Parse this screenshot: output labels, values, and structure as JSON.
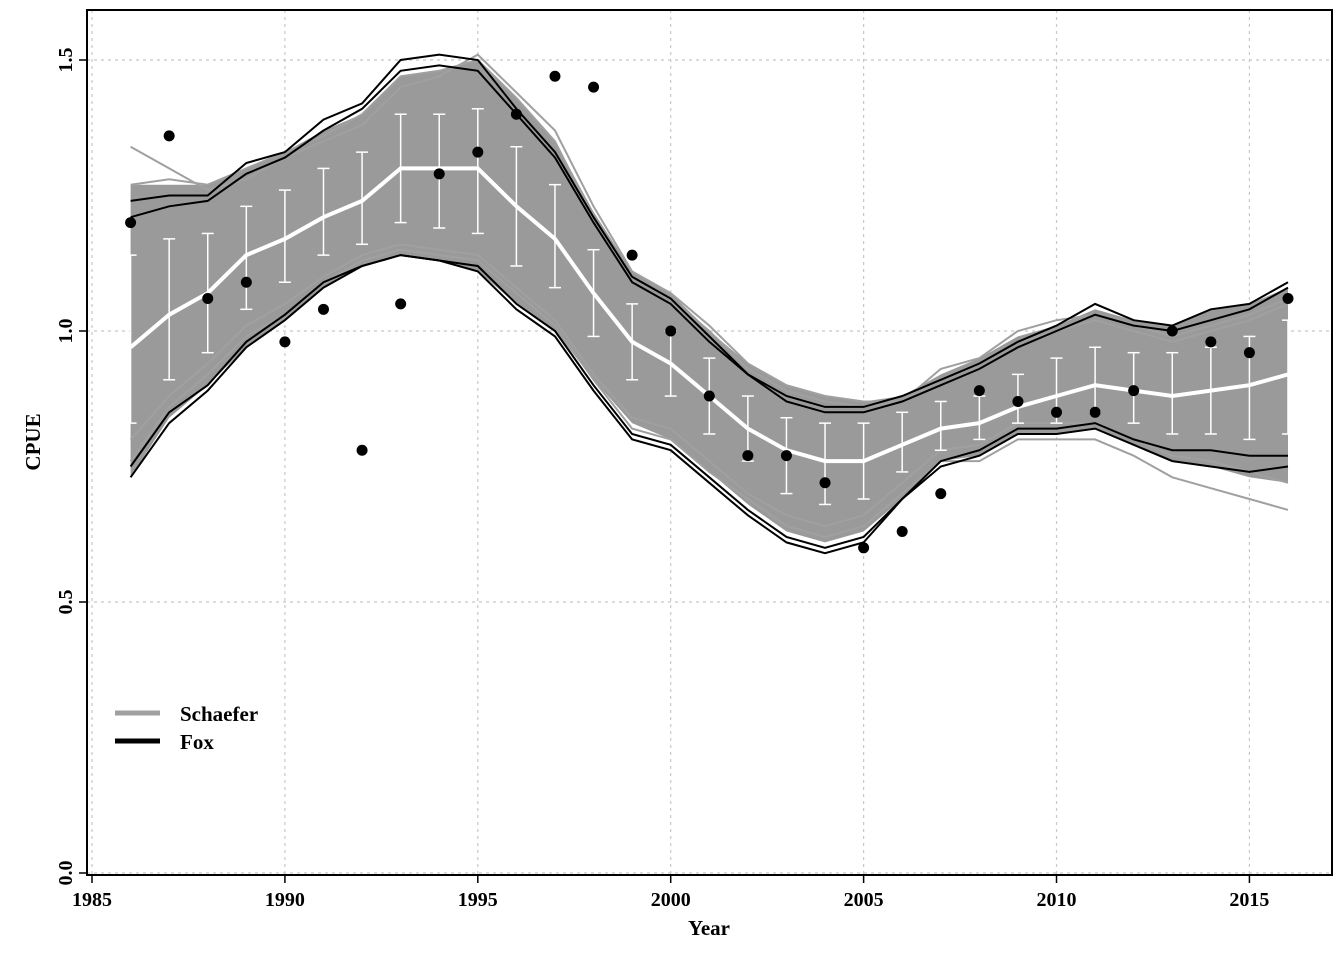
{
  "chart_data": {
    "type": "line",
    "title": "",
    "xlabel": "Year",
    "ylabel": "CPUE",
    "xlim": [
      1985,
      2017
    ],
    "ylim": [
      0,
      1.6
    ],
    "x_ticks": [
      1985,
      1990,
      1995,
      2000,
      2005,
      2010,
      2015
    ],
    "y_ticks": [
      0.0,
      0.5,
      1.0,
      1.5
    ],
    "x_tick_labels": [
      "1985",
      "1990",
      "1995",
      "2000",
      "2005",
      "2010",
      "2015"
    ],
    "y_tick_labels": [
      "0.0",
      "0.5",
      "1.0",
      "1.5"
    ],
    "grid": true,
    "legend_position": "bottom-left",
    "legend": [
      {
        "name": "Schaefer",
        "color": "#a0a0a0"
      },
      {
        "name": "Fox",
        "color": "#000000"
      }
    ],
    "years": [
      1986,
      1987,
      1988,
      1989,
      1990,
      1991,
      1992,
      1993,
      1994,
      1995,
      1996,
      1997,
      1998,
      1999,
      2000,
      2001,
      2002,
      2003,
      2004,
      2005,
      2006,
      2007,
      2008,
      2009,
      2010,
      2011,
      2012,
      2013,
      2014,
      2015,
      2016
    ],
    "median": [
      0.97,
      1.03,
      1.07,
      1.14,
      1.17,
      1.21,
      1.24,
      1.3,
      1.3,
      1.3,
      1.23,
      1.17,
      1.07,
      0.98,
      0.94,
      0.88,
      0.82,
      0.78,
      0.76,
      0.76,
      0.79,
      0.82,
      0.83,
      0.86,
      0.88,
      0.9,
      0.89,
      0.88,
      0.89,
      0.9,
      0.92
    ],
    "band_upper": [
      1.27,
      1.27,
      1.27,
      1.3,
      1.33,
      1.37,
      1.4,
      1.47,
      1.48,
      1.5,
      1.43,
      1.35,
      1.22,
      1.11,
      1.07,
      1.0,
      0.94,
      0.9,
      0.88,
      0.87,
      0.88,
      0.92,
      0.95,
      0.99,
      1.01,
      1.04,
      1.02,
      1.01,
      1.04,
      1.05,
      1.08
    ],
    "band_lower": [
      0.73,
      0.84,
      0.9,
      0.97,
      1.02,
      1.08,
      1.12,
      1.14,
      1.13,
      1.11,
      1.05,
      1.0,
      0.91,
      0.83,
      0.8,
      0.74,
      0.68,
      0.63,
      0.61,
      0.63,
      0.69,
      0.76,
      0.77,
      0.81,
      0.81,
      0.82,
      0.79,
      0.76,
      0.75,
      0.73,
      0.72
    ],
    "ci_upper": [
      1.14,
      1.17,
      1.18,
      1.23,
      1.26,
      1.3,
      1.33,
      1.4,
      1.4,
      1.41,
      1.34,
      1.27,
      1.15,
      1.05,
      1.0,
      0.95,
      0.88,
      0.84,
      0.83,
      0.83,
      0.85,
      0.87,
      0.88,
      0.92,
      0.95,
      0.97,
      0.96,
      0.96,
      0.97,
      0.99,
      1.02
    ],
    "ci_lower": [
      0.83,
      0.91,
      0.96,
      1.04,
      1.09,
      1.14,
      1.16,
      1.2,
      1.19,
      1.18,
      1.12,
      1.08,
      0.99,
      0.91,
      0.88,
      0.81,
      0.76,
      0.7,
      0.68,
      0.69,
      0.74,
      0.78,
      0.8,
      0.83,
      0.83,
      0.85,
      0.83,
      0.81,
      0.81,
      0.8,
      0.81
    ],
    "observed_points": [
      {
        "x": 1986,
        "y": 1.2
      },
      {
        "x": 1987,
        "y": 1.36
      },
      {
        "x": 1988,
        "y": 1.06
      },
      {
        "x": 1989,
        "y": 1.09
      },
      {
        "x": 1990,
        "y": 0.98
      },
      {
        "x": 1991,
        "y": 1.04
      },
      {
        "x": 1992,
        "y": 0.78
      },
      {
        "x": 1993,
        "y": 1.05
      },
      {
        "x": 1994,
        "y": 1.29
      },
      {
        "x": 1995,
        "y": 1.33
      },
      {
        "x": 1996,
        "y": 1.4
      },
      {
        "x": 1997,
        "y": 1.47
      },
      {
        "x": 1998,
        "y": 1.45
      },
      {
        "x": 1999,
        "y": 1.14
      },
      {
        "x": 2000,
        "y": 1.0
      },
      {
        "x": 2001,
        "y": 0.88
      },
      {
        "x": 2002,
        "y": 0.77
      },
      {
        "x": 2003,
        "y": 0.77
      },
      {
        "x": 2004,
        "y": 0.72
      },
      {
        "x": 2005,
        "y": 0.6
      },
      {
        "x": 2006,
        "y": 0.63
      },
      {
        "x": 2007,
        "y": 0.7
      },
      {
        "x": 2008,
        "y": 0.89
      },
      {
        "x": 2009,
        "y": 0.87
      },
      {
        "x": 2010,
        "y": 0.85
      },
      {
        "x": 2011,
        "y": 0.85
      },
      {
        "x": 2012,
        "y": 0.89
      },
      {
        "x": 2013,
        "y": 1.0
      },
      {
        "x": 2014,
        "y": 0.98
      },
      {
        "x": 2015,
        "y": 0.96
      },
      {
        "x": 2016,
        "y": 1.06
      }
    ],
    "series": [
      {
        "name": "Schaefer",
        "color": "#a0a0a0",
        "values": [
          1.34,
          1.3,
          1.26,
          1.28,
          1.32,
          1.35,
          1.38,
          1.45,
          1.47,
          1.51,
          1.44,
          1.37,
          1.23,
          1.11,
          1.07,
          1.01,
          0.94,
          0.9,
          0.88,
          0.87,
          0.87,
          0.93,
          0.95,
          1.0,
          1.02,
          1.03,
          1.01,
          0.99,
          1.01,
          1.03,
          1.06
        ]
      },
      {
        "name": "Schaefer",
        "color": "#a0a0a0",
        "values": [
          1.27,
          1.28,
          1.27,
          1.3,
          1.33,
          1.36,
          1.4,
          1.47,
          1.48,
          1.5,
          1.43,
          1.35,
          1.21,
          1.1,
          1.06,
          1.0,
          0.93,
          0.89,
          0.87,
          0.86,
          0.87,
          0.91,
          0.94,
          0.98,
          1.0,
          1.02,
          1.0,
          0.98,
          1.0,
          1.02,
          1.05
        ]
      },
      {
        "name": "Schaefer",
        "color": "#a0a0a0",
        "values": [
          0.76,
          0.86,
          0.92,
          0.99,
          1.03,
          1.09,
          1.13,
          1.15,
          1.14,
          1.13,
          1.07,
          1.01,
          0.91,
          0.82,
          0.8,
          0.74,
          0.69,
          0.64,
          0.62,
          0.64,
          0.7,
          0.76,
          0.76,
          0.8,
          0.8,
          0.8,
          0.77,
          0.73,
          0.71,
          0.69,
          0.67
        ]
      },
      {
        "name": "Schaefer",
        "color": "#a0a0a0",
        "values": [
          0.8,
          0.88,
          0.94,
          1.01,
          1.05,
          1.1,
          1.14,
          1.16,
          1.15,
          1.14,
          1.08,
          1.02,
          0.92,
          0.84,
          0.82,
          0.76,
          0.7,
          0.66,
          0.64,
          0.66,
          0.72,
          0.78,
          0.79,
          0.83,
          0.83,
          0.83,
          0.8,
          0.77,
          0.76,
          0.74,
          0.72
        ]
      },
      {
        "name": "Fox",
        "color": "#000000",
        "values": [
          1.24,
          1.25,
          1.25,
          1.31,
          1.33,
          1.39,
          1.42,
          1.5,
          1.51,
          1.5,
          1.41,
          1.33,
          1.21,
          1.1,
          1.06,
          0.99,
          0.92,
          0.88,
          0.86,
          0.86,
          0.88,
          0.91,
          0.94,
          0.98,
          1.01,
          1.05,
          1.02,
          1.01,
          1.04,
          1.05,
          1.09
        ]
      },
      {
        "name": "Fox",
        "color": "#000000",
        "values": [
          1.21,
          1.23,
          1.24,
          1.29,
          1.32,
          1.37,
          1.41,
          1.48,
          1.49,
          1.48,
          1.4,
          1.32,
          1.2,
          1.09,
          1.05,
          0.98,
          0.92,
          0.87,
          0.85,
          0.85,
          0.87,
          0.9,
          0.93,
          0.97,
          1.0,
          1.03,
          1.01,
          1.0,
          1.02,
          1.04,
          1.08
        ]
      },
      {
        "name": "Fox",
        "color": "#000000",
        "values": [
          0.73,
          0.83,
          0.89,
          0.97,
          1.02,
          1.08,
          1.12,
          1.14,
          1.13,
          1.11,
          1.04,
          0.99,
          0.89,
          0.8,
          0.78,
          0.72,
          0.66,
          0.61,
          0.59,
          0.61,
          0.69,
          0.76,
          0.78,
          0.82,
          0.82,
          0.83,
          0.8,
          0.78,
          0.78,
          0.77,
          0.77
        ]
      },
      {
        "name": "Fox",
        "color": "#000000",
        "values": [
          0.75,
          0.85,
          0.9,
          0.98,
          1.03,
          1.09,
          1.12,
          1.14,
          1.13,
          1.12,
          1.05,
          1.0,
          0.9,
          0.81,
          0.79,
          0.73,
          0.67,
          0.62,
          0.6,
          0.62,
          0.69,
          0.75,
          0.77,
          0.81,
          0.81,
          0.82,
          0.79,
          0.76,
          0.75,
          0.74,
          0.75
        ]
      }
    ]
  }
}
